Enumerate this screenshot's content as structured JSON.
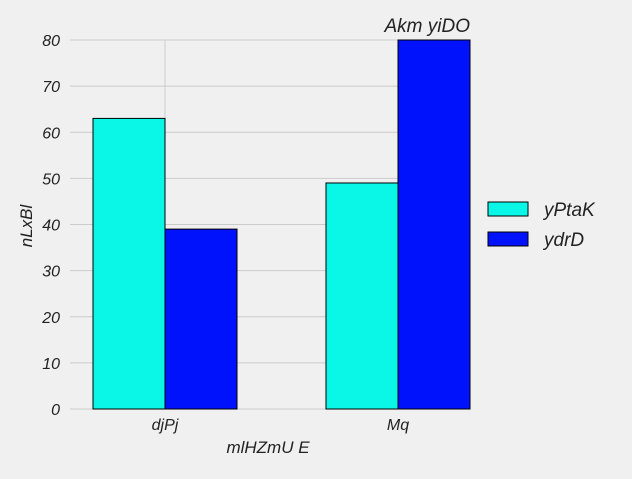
{
  "chart_data": {
    "type": "bar",
    "title": "Akm yiDO",
    "xlabel": "mlHZmU E",
    "ylabel": "nLxBl",
    "categories": [
      "djPj",
      "Mq"
    ],
    "series": [
      {
        "name": "yPtaK",
        "values": [
          63,
          49
        ],
        "color": "#0af7e8"
      },
      {
        "name": "ydrD",
        "values": [
          39,
          80
        ],
        "color": "#0012fc"
      }
    ],
    "ylim": [
      0,
      80
    ],
    "yticks": [
      0,
      10,
      20,
      30,
      40,
      50,
      60,
      70,
      80
    ],
    "grid": true,
    "legend_position": "right"
  }
}
